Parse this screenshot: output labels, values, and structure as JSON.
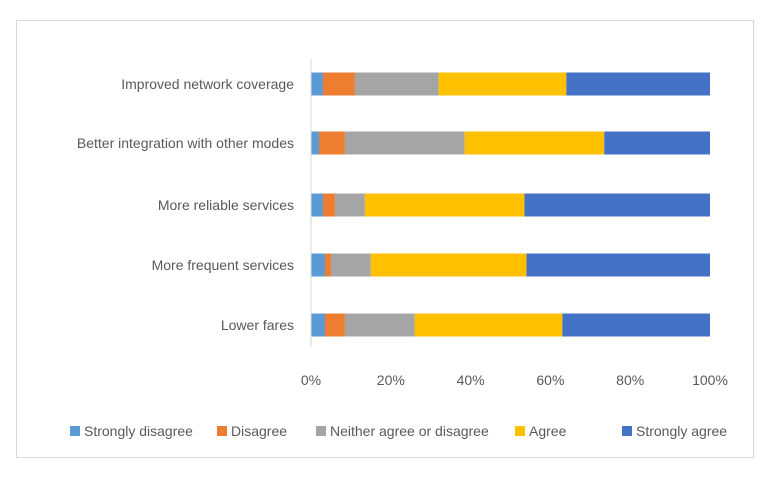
{
  "chart_data": {
    "type": "bar",
    "orientation": "horizontal",
    "stacked": "percent",
    "title": "",
    "xlabel": "",
    "ylabel": "",
    "xlim": [
      0,
      100
    ],
    "ticks": [
      "0%",
      "20%",
      "40%",
      "60%",
      "80%",
      "100%"
    ],
    "tick_values": [
      0,
      20,
      40,
      60,
      80,
      100
    ],
    "categories": [
      "Improved network coverage",
      "Better integration with other modes",
      "More reliable services",
      "More frequent services",
      "Lower fares"
    ],
    "series": [
      {
        "name": "Strongly disagree",
        "color": "#5b9bd5",
        "values": [
          3,
          2,
          3,
          3.5,
          3.5
        ]
      },
      {
        "name": "Disagree",
        "color": "#ed7d31",
        "values": [
          8,
          6.5,
          3,
          1.5,
          5
        ]
      },
      {
        "name": "Neither agree or disagree",
        "color": "#a5a5a5",
        "values": [
          21,
          30,
          7.5,
          10,
          17.5
        ]
      },
      {
        "name": "Agree",
        "color": "#ffc000",
        "values": [
          32,
          35,
          40,
          39,
          37
        ]
      },
      {
        "name": "Strongly agree",
        "color": "#4472c4",
        "values": [
          36,
          26.5,
          46.5,
          46,
          37
        ]
      }
    ],
    "legend_position": "bottom",
    "grid": false
  }
}
